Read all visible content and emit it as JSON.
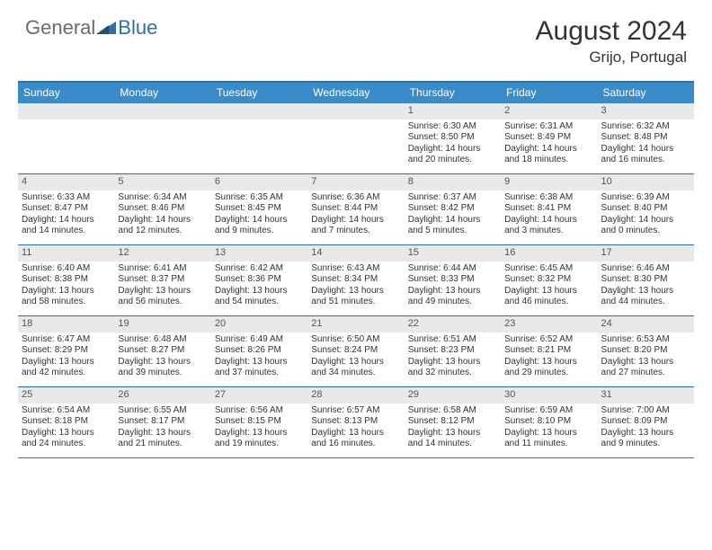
{
  "brand": {
    "text1": "General",
    "text2": "Blue"
  },
  "title": "August 2024",
  "location": "Grijo, Portugal",
  "colors": {
    "header_bg": "#3b8bc9",
    "border": "#2f6fa8",
    "daynum_bg": "#e9e9e9",
    "text": "#333333",
    "logo_gray": "#6b6b6b",
    "logo_blue": "#2f6fa8"
  },
  "day_names": [
    "Sunday",
    "Monday",
    "Tuesday",
    "Wednesday",
    "Thursday",
    "Friday",
    "Saturday"
  ],
  "weeks": [
    [
      null,
      null,
      null,
      null,
      {
        "n": "1",
        "sr": "6:30 AM",
        "ss": "8:50 PM",
        "dl": "14 hours and 20 minutes."
      },
      {
        "n": "2",
        "sr": "6:31 AM",
        "ss": "8:49 PM",
        "dl": "14 hours and 18 minutes."
      },
      {
        "n": "3",
        "sr": "6:32 AM",
        "ss": "8:48 PM",
        "dl": "14 hours and 16 minutes."
      }
    ],
    [
      {
        "n": "4",
        "sr": "6:33 AM",
        "ss": "8:47 PM",
        "dl": "14 hours and 14 minutes."
      },
      {
        "n": "5",
        "sr": "6:34 AM",
        "ss": "8:46 PM",
        "dl": "14 hours and 12 minutes."
      },
      {
        "n": "6",
        "sr": "6:35 AM",
        "ss": "8:45 PM",
        "dl": "14 hours and 9 minutes."
      },
      {
        "n": "7",
        "sr": "6:36 AM",
        "ss": "8:44 PM",
        "dl": "14 hours and 7 minutes."
      },
      {
        "n": "8",
        "sr": "6:37 AM",
        "ss": "8:42 PM",
        "dl": "14 hours and 5 minutes."
      },
      {
        "n": "9",
        "sr": "6:38 AM",
        "ss": "8:41 PM",
        "dl": "14 hours and 3 minutes."
      },
      {
        "n": "10",
        "sr": "6:39 AM",
        "ss": "8:40 PM",
        "dl": "14 hours and 0 minutes."
      }
    ],
    [
      {
        "n": "11",
        "sr": "6:40 AM",
        "ss": "8:38 PM",
        "dl": "13 hours and 58 minutes."
      },
      {
        "n": "12",
        "sr": "6:41 AM",
        "ss": "8:37 PM",
        "dl": "13 hours and 56 minutes."
      },
      {
        "n": "13",
        "sr": "6:42 AM",
        "ss": "8:36 PM",
        "dl": "13 hours and 54 minutes."
      },
      {
        "n": "14",
        "sr": "6:43 AM",
        "ss": "8:34 PM",
        "dl": "13 hours and 51 minutes."
      },
      {
        "n": "15",
        "sr": "6:44 AM",
        "ss": "8:33 PM",
        "dl": "13 hours and 49 minutes."
      },
      {
        "n": "16",
        "sr": "6:45 AM",
        "ss": "8:32 PM",
        "dl": "13 hours and 46 minutes."
      },
      {
        "n": "17",
        "sr": "6:46 AM",
        "ss": "8:30 PM",
        "dl": "13 hours and 44 minutes."
      }
    ],
    [
      {
        "n": "18",
        "sr": "6:47 AM",
        "ss": "8:29 PM",
        "dl": "13 hours and 42 minutes."
      },
      {
        "n": "19",
        "sr": "6:48 AM",
        "ss": "8:27 PM",
        "dl": "13 hours and 39 minutes."
      },
      {
        "n": "20",
        "sr": "6:49 AM",
        "ss": "8:26 PM",
        "dl": "13 hours and 37 minutes."
      },
      {
        "n": "21",
        "sr": "6:50 AM",
        "ss": "8:24 PM",
        "dl": "13 hours and 34 minutes."
      },
      {
        "n": "22",
        "sr": "6:51 AM",
        "ss": "8:23 PM",
        "dl": "13 hours and 32 minutes."
      },
      {
        "n": "23",
        "sr": "6:52 AM",
        "ss": "8:21 PM",
        "dl": "13 hours and 29 minutes."
      },
      {
        "n": "24",
        "sr": "6:53 AM",
        "ss": "8:20 PM",
        "dl": "13 hours and 27 minutes."
      }
    ],
    [
      {
        "n": "25",
        "sr": "6:54 AM",
        "ss": "8:18 PM",
        "dl": "13 hours and 24 minutes."
      },
      {
        "n": "26",
        "sr": "6:55 AM",
        "ss": "8:17 PM",
        "dl": "13 hours and 21 minutes."
      },
      {
        "n": "27",
        "sr": "6:56 AM",
        "ss": "8:15 PM",
        "dl": "13 hours and 19 minutes."
      },
      {
        "n": "28",
        "sr": "6:57 AM",
        "ss": "8:13 PM",
        "dl": "13 hours and 16 minutes."
      },
      {
        "n": "29",
        "sr": "6:58 AM",
        "ss": "8:12 PM",
        "dl": "13 hours and 14 minutes."
      },
      {
        "n": "30",
        "sr": "6:59 AM",
        "ss": "8:10 PM",
        "dl": "13 hours and 11 minutes."
      },
      {
        "n": "31",
        "sr": "7:00 AM",
        "ss": "8:09 PM",
        "dl": "13 hours and 9 minutes."
      }
    ]
  ],
  "labels": {
    "sunrise": "Sunrise: ",
    "sunset": "Sunset: ",
    "daylight": "Daylight: "
  }
}
